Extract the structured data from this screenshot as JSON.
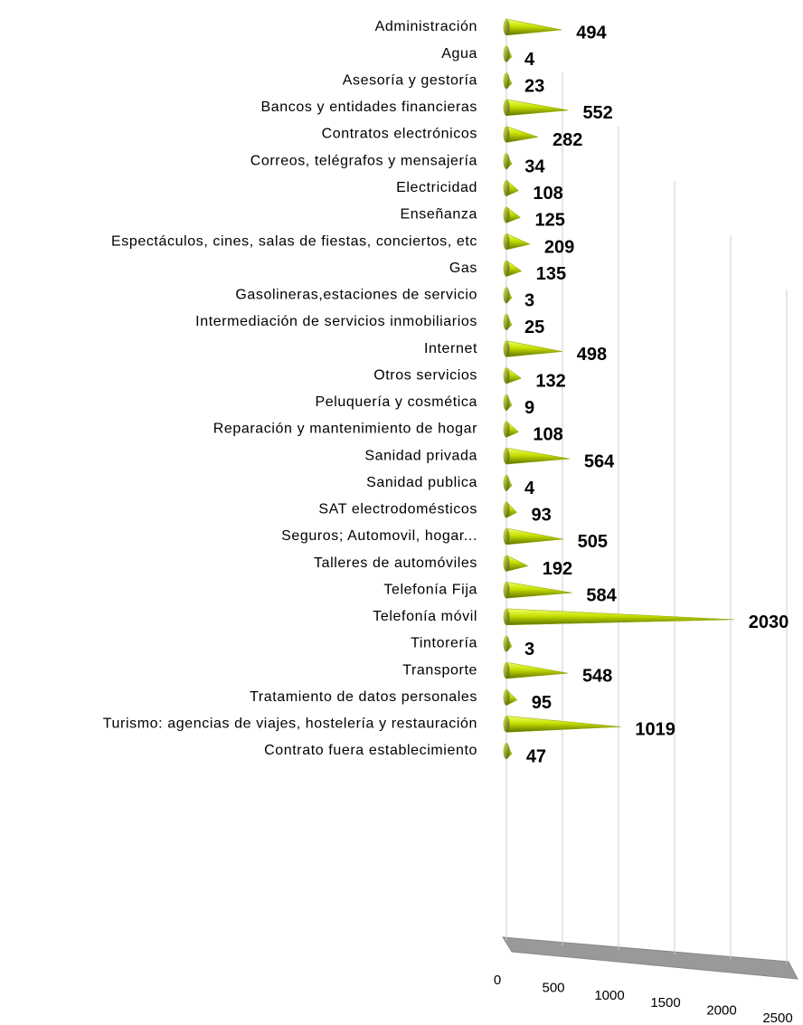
{
  "chart_data": {
    "type": "bar",
    "orientation": "horizontal",
    "categories": [
      "Administración",
      "Agua",
      "Asesoría y gestoría",
      "Bancos y entidades financieras",
      "Contratos electrónicos",
      "Correos, telégrafos y mensajería",
      "Electricidad",
      "Enseñanza",
      "Espectáculos, cines, salas de fiestas, conciertos, etc",
      "Gas",
      "Gasolineras,estaciones de servicio",
      "Intermediación de servicios inmobiliarios",
      "Internet",
      "Otros servicios",
      "Peluquería y cosmética",
      "Reparación y mantenimiento de hogar",
      "Sanidad privada",
      "Sanidad publica",
      "SAT electrodomésticos",
      "Seguros; Automovil, hogar...",
      "Talleres de automóviles",
      "Telefonía Fija",
      "Telefonía móvil",
      "Tintorería",
      "Transporte",
      "Tratamiento de datos personales",
      "Turismo: agencias de viajes, hostelería y restauración",
      "Contrato fuera establecimiento"
    ],
    "values": [
      494,
      4,
      23,
      552,
      282,
      34,
      108,
      125,
      209,
      135,
      3,
      25,
      498,
      132,
      9,
      108,
      564,
      4,
      93,
      505,
      192,
      584,
      2030,
      3,
      548,
      95,
      1019,
      47
    ],
    "color": "#c6e000",
    "xlim": [
      0,
      2500
    ],
    "xticks": [
      0,
      500,
      1000,
      1500,
      2000,
      2500
    ],
    "grid": true
  }
}
